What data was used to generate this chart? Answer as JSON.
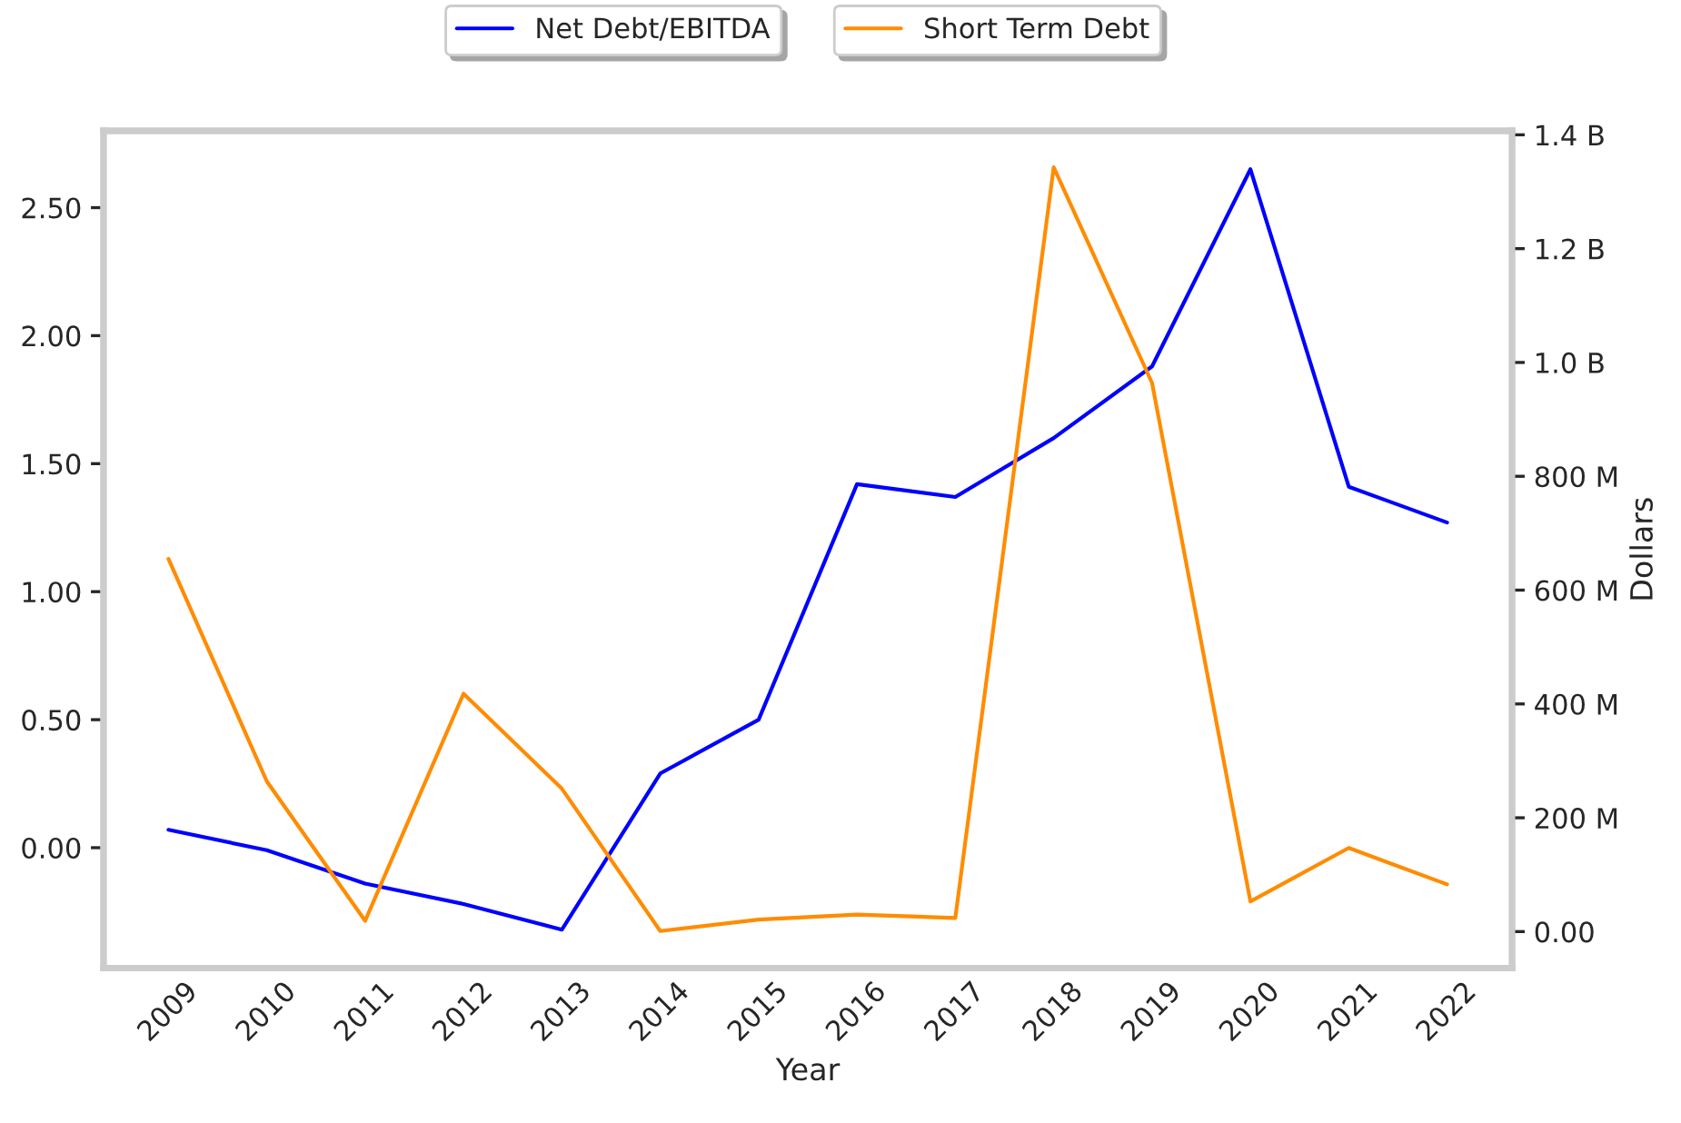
{
  "chart_data": {
    "type": "line",
    "xlabel": "Year",
    "y2label": "Dollars",
    "categories": [
      "2009",
      "2010",
      "2011",
      "2012",
      "2013",
      "2014",
      "2015",
      "2016",
      "2017",
      "2018",
      "2019",
      "2020",
      "2021",
      "2022"
    ],
    "series": [
      {
        "name": "Net Debt/EBITDA",
        "color": "#0000ff",
        "values": [
          0.07,
          -0.01,
          -0.14,
          -0.22,
          -0.32,
          0.29,
          0.5,
          1.42,
          1.37,
          1.6,
          1.88,
          2.65,
          1.41,
          1.27
        ]
      },
      {
        "name": "Short Term Debt",
        "color": "#ff8c00",
        "axis": "y2",
        "values": [
          655000000,
          264000000,
          19000000,
          418000000,
          251000000,
          1000000,
          21000000,
          30000000,
          24000000,
          1343000000,
          964000000,
          53000000,
          147000000,
          83000000
        ]
      }
    ],
    "ylim": [
      -0.47,
      2.8
    ],
    "yticks": [
      {
        "value": 0,
        "label": "0.00"
      },
      {
        "value": 0.5,
        "label": "0.50"
      },
      {
        "value": 1,
        "label": "1.00"
      },
      {
        "value": 1.5,
        "label": "1.50"
      },
      {
        "value": 2,
        "label": "2.00"
      },
      {
        "value": 2.5,
        "label": "2.50"
      }
    ],
    "y2lim": [
      -64000000,
      1407000000
    ],
    "y2ticks": [
      {
        "value": 0,
        "label": "0.00"
      },
      {
        "value": 200000000,
        "label": "200 M"
      },
      {
        "value": 400000000,
        "label": "400 M"
      },
      {
        "value": 600000000,
        "label": "600 M"
      },
      {
        "value": 800000000,
        "label": "800 M"
      },
      {
        "value": 1000000000,
        "label": "1.0 B"
      },
      {
        "value": 1200000000,
        "label": "1.2 B"
      },
      {
        "value": 1400000000,
        "label": "1.4 B"
      }
    ],
    "legend": "top"
  }
}
